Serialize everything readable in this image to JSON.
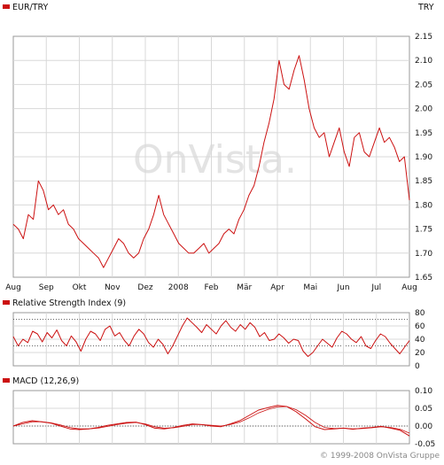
{
  "colors": {
    "series": "#cc1111",
    "grid": "#d8d8d8",
    "frame": "#999999",
    "text": "#111111",
    "copyright": "#888888"
  },
  "watermark": "OnVista.",
  "copyright": "© 1999-2008 OnVista Gruppe",
  "chart_data": [
    {
      "type": "line",
      "title": "EUR/TRY",
      "currency": "TRY",
      "legend": "EUR/TRY",
      "grid": true,
      "x_labels": [
        "Aug",
        "Sep",
        "Okt",
        "Nov",
        "Dez",
        "2008",
        "Feb",
        "Mär",
        "Apr",
        "Mai",
        "Jun",
        "Jul",
        "Aug"
      ],
      "ylim": [
        1.65,
        2.15
      ],
      "y_ticks": [
        "1.65",
        "1.70",
        "1.75",
        "1.80",
        "1.85",
        "1.90",
        "1.95",
        "2.00",
        "2.05",
        "2.10",
        "2.15"
      ],
      "series": [
        {
          "values": [
            1.76,
            1.75,
            1.73,
            1.78,
            1.77,
            1.85,
            1.83,
            1.79,
            1.8,
            1.78,
            1.79,
            1.76,
            1.75,
            1.73,
            1.72,
            1.71,
            1.7,
            1.69,
            1.67,
            1.69,
            1.71,
            1.73,
            1.72,
            1.7,
            1.69,
            1.7,
            1.73,
            1.75,
            1.78,
            1.82,
            1.78,
            1.76,
            1.74,
            1.72,
            1.71,
            1.7,
            1.7,
            1.71,
            1.72,
            1.7,
            1.71,
            1.72,
            1.74,
            1.75,
            1.74,
            1.77,
            1.79,
            1.82,
            1.84,
            1.88,
            1.93,
            1.97,
            2.02,
            2.1,
            2.05,
            2.04,
            2.08,
            2.11,
            2.06,
            2.0,
            1.96,
            1.94,
            1.95,
            1.9,
            1.93,
            1.96,
            1.91,
            1.88,
            1.94,
            1.95,
            1.91,
            1.9,
            1.93,
            1.96,
            1.93,
            1.94,
            1.92,
            1.89,
            1.9,
            1.81
          ]
        }
      ]
    },
    {
      "type": "line",
      "title": "Relative Strength Index (9)",
      "legend": "Relative Strength Index (9)",
      "ylim": [
        0,
        80
      ],
      "y_ticks": [
        "0",
        "20",
        "40",
        "60",
        "80"
      ],
      "reference_lines": [
        30,
        70
      ],
      "series": [
        {
          "values": [
            44,
            30,
            40,
            35,
            52,
            48,
            36,
            50,
            42,
            54,
            38,
            30,
            45,
            36,
            22,
            40,
            52,
            48,
            38,
            55,
            60,
            45,
            50,
            38,
            30,
            45,
            55,
            48,
            35,
            28,
            40,
            32,
            18,
            30,
            45,
            60,
            72,
            65,
            58,
            50,
            62,
            55,
            48,
            60,
            68,
            58,
            52,
            62,
            55,
            65,
            58,
            44,
            50,
            38,
            40,
            48,
            42,
            34,
            40,
            38,
            22,
            14,
            20,
            30,
            40,
            34,
            28,
            42,
            52,
            48,
            40,
            35,
            44,
            30,
            26,
            38,
            48,
            44,
            34,
            26,
            18,
            28,
            38
          ]
        }
      ]
    },
    {
      "type": "line",
      "title": "MACD (12,26,9)",
      "legend": "MACD (12,26,9)",
      "ylim": [
        -0.05,
        0.1
      ],
      "y_ticks": [
        "-0.05",
        "0.00",
        "0.05",
        "0.10"
      ],
      "series": [
        {
          "values": [
            0.0,
            0.01,
            0.015,
            0.012,
            0.008,
            0.0,
            -0.008,
            -0.01,
            -0.008,
            -0.004,
            0.002,
            0.006,
            0.01,
            0.011,
            0.004,
            -0.006,
            -0.008,
            -0.004,
            0.002,
            0.006,
            0.004,
            0.0,
            -0.002,
            0.006,
            0.015,
            0.03,
            0.045,
            0.052,
            0.058,
            0.055,
            0.04,
            0.02,
            -0.002,
            -0.01,
            -0.008,
            -0.006,
            -0.009,
            -0.006,
            -0.004,
            -0.001,
            -0.006,
            -0.012,
            -0.028
          ]
        },
        {
          "values": [
            0.0,
            0.006,
            0.012,
            0.012,
            0.009,
            0.003,
            -0.004,
            -0.008,
            -0.008,
            -0.006,
            -0.001,
            0.004,
            0.008,
            0.01,
            0.006,
            -0.002,
            -0.006,
            -0.005,
            -0.001,
            0.004,
            0.004,
            0.002,
            0.0,
            0.004,
            0.011,
            0.023,
            0.037,
            0.047,
            0.054,
            0.055,
            0.046,
            0.03,
            0.01,
            -0.004,
            -0.007,
            -0.006,
            -0.008,
            -0.007,
            -0.005,
            -0.002,
            -0.004,
            -0.009,
            -0.02
          ]
        }
      ]
    }
  ]
}
